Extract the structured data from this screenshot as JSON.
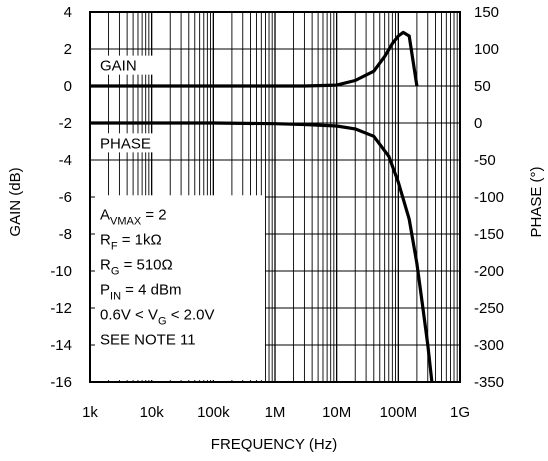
{
  "chart_data": {
    "type": "line",
    "xlabel": "FREQUENCY (Hz)",
    "ylabel_left": "GAIN (dB)",
    "ylabel_right": "PHASE (°)",
    "x_scale": "log",
    "xlim": [
      1000,
      1000000000
    ],
    "ylim_left": [
      -16,
      4
    ],
    "ylim_right": [
      -350,
      150
    ],
    "x_ticks": [
      {
        "value": 1000,
        "label": "1k"
      },
      {
        "value": 10000,
        "label": "10k"
      },
      {
        "value": 100000,
        "label": "100k"
      },
      {
        "value": 1000000,
        "label": "1M"
      },
      {
        "value": 10000000,
        "label": "10M"
      },
      {
        "value": 100000000,
        "label": "100M"
      },
      {
        "value": 1000000000,
        "label": "1G"
      }
    ],
    "y_ticks_left": [
      {
        "value": 4,
        "label": "4"
      },
      {
        "value": 2,
        "label": "2"
      },
      {
        "value": 0,
        "label": "0"
      },
      {
        "value": -2,
        "label": "-2"
      },
      {
        "value": -4,
        "label": "-4"
      },
      {
        "value": -6,
        "label": "-6"
      },
      {
        "value": -8,
        "label": "-8"
      },
      {
        "value": -10,
        "label": "-10"
      },
      {
        "value": -12,
        "label": "-12"
      },
      {
        "value": -14,
        "label": "-14"
      },
      {
        "value": -16,
        "label": "-16"
      }
    ],
    "y_ticks_right": [
      {
        "value": 150,
        "label": "150"
      },
      {
        "value": 100,
        "label": "100"
      },
      {
        "value": 50,
        "label": "50"
      },
      {
        "value": 0,
        "label": "0"
      },
      {
        "value": -50,
        "label": "-50"
      },
      {
        "value": -100,
        "label": "-100"
      },
      {
        "value": -150,
        "label": "-150"
      },
      {
        "value": -200,
        "label": "-200"
      },
      {
        "value": -250,
        "label": "-250"
      },
      {
        "value": -300,
        "label": "-300"
      },
      {
        "value": -350,
        "label": "-350"
      }
    ],
    "grid": true,
    "series": [
      {
        "name": "GAIN",
        "axis": "left",
        "x": [
          1000,
          10000,
          100000,
          1000000,
          3000000,
          10000000,
          20000000,
          40000000,
          60000000,
          80000000,
          100000000,
          120000000,
          150000000,
          200000000
        ],
        "y": [
          0,
          0,
          0,
          0,
          0,
          0.05,
          0.3,
          0.8,
          1.6,
          2.3,
          2.7,
          2.9,
          2.7,
          0
        ]
      },
      {
        "name": "PHASE",
        "axis": "right",
        "x": [
          1000,
          10000,
          100000,
          1000000,
          3000000,
          10000000,
          20000000,
          40000000,
          70000000,
          100000000,
          150000000,
          200000000,
          250000000,
          300000000,
          350000000
        ],
        "y": [
          0,
          0,
          0,
          -1,
          -2,
          -4,
          -8,
          -18,
          -45,
          -80,
          -130,
          -190,
          -250,
          -300,
          -350
        ]
      }
    ],
    "series_labels": [
      "GAIN",
      "PHASE"
    ],
    "annotation": [
      {
        "main": "A",
        "sub": "VMAX",
        "rest": " = 2"
      },
      {
        "main": "R",
        "sub": "F",
        "rest": " = 1kΩ"
      },
      {
        "main": "R",
        "sub": "G",
        "rest": " = 510Ω"
      },
      {
        "main": "P",
        "sub": "IN",
        "rest": " = 4 dBm"
      },
      {
        "main": "0.6V < V",
        "sub": "G",
        "rest": " < 2.0V"
      },
      {
        "main": "SEE NOTE 11",
        "sub": "",
        "rest": ""
      }
    ],
    "line_color": "#000000",
    "grid_color": "#000000"
  }
}
